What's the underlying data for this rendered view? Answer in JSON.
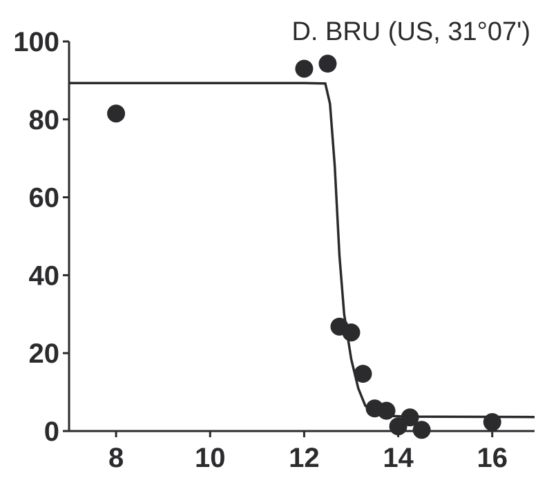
{
  "chart_data": {
    "type": "scatter",
    "title": "D. BRU (US, 31°07')",
    "xlabel": "",
    "ylabel": "",
    "xlim": [
      7,
      16.9
    ],
    "ylim": [
      0,
      100
    ],
    "xticks": [
      8,
      10,
      12,
      14,
      16
    ],
    "yticks": [
      0,
      20,
      40,
      60,
      80,
      100
    ],
    "grid": false,
    "series": [
      {
        "points": [
          {
            "x": 8.0,
            "y": 81.5
          },
          {
            "x": 12.0,
            "y": 93.0
          },
          {
            "x": 12.5,
            "y": 94.3
          },
          {
            "x": 12.75,
            "y": 26.8
          },
          {
            "x": 13.0,
            "y": 25.3
          },
          {
            "x": 13.25,
            "y": 14.7
          },
          {
            "x": 13.5,
            "y": 5.8
          },
          {
            "x": 13.75,
            "y": 5.2
          },
          {
            "x": 14.0,
            "y": 1.2
          },
          {
            "x": 14.25,
            "y": 3.5
          },
          {
            "x": 14.5,
            "y": 0.3
          },
          {
            "x": 16.0,
            "y": 2.3
          }
        ]
      }
    ],
    "fit_curve": {
      "points": [
        {
          "x": 7.0,
          "y": 89.3
        },
        {
          "x": 12.0,
          "y": 89.3
        },
        {
          "x": 12.45,
          "y": 89.2
        },
        {
          "x": 12.55,
          "y": 84.0
        },
        {
          "x": 12.65,
          "y": 68.0
        },
        {
          "x": 12.75,
          "y": 45.0
        },
        {
          "x": 12.85,
          "y": 30.0
        },
        {
          "x": 13.0,
          "y": 18.5
        },
        {
          "x": 13.15,
          "y": 11.0
        },
        {
          "x": 13.3,
          "y": 6.5
        },
        {
          "x": 13.5,
          "y": 4.6
        },
        {
          "x": 13.8,
          "y": 3.9
        },
        {
          "x": 14.2,
          "y": 3.7
        },
        {
          "x": 16.9,
          "y": 3.6
        }
      ]
    }
  }
}
